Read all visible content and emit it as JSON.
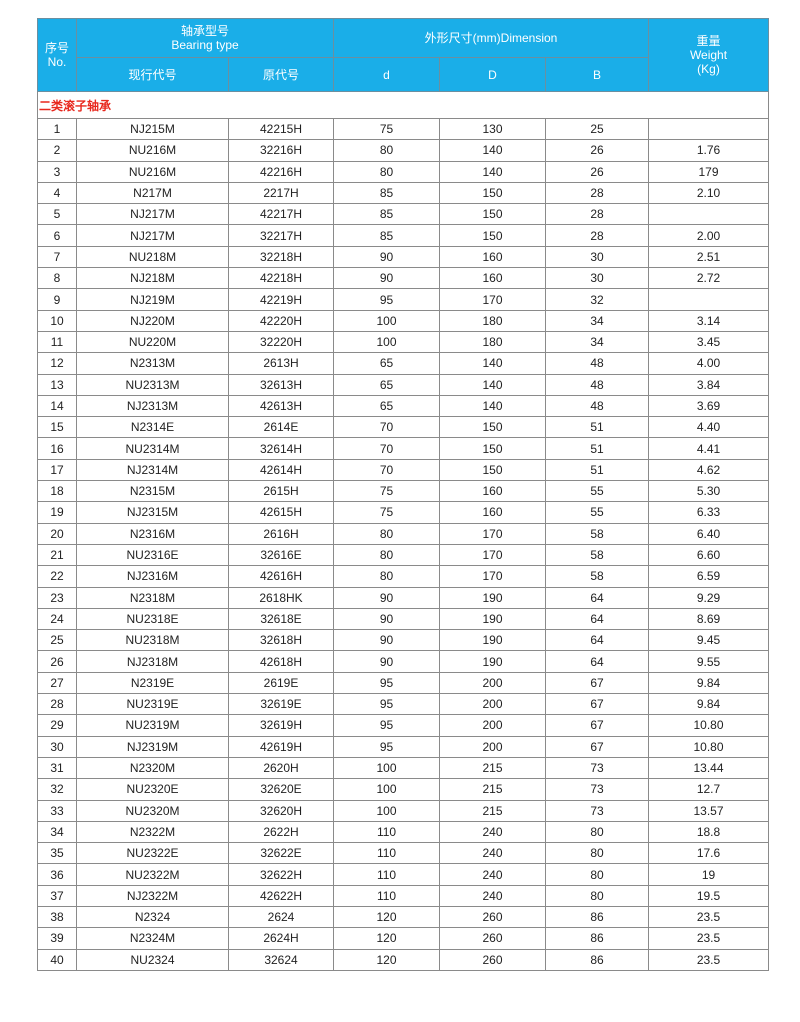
{
  "header": {
    "no_cn": "序号",
    "no_en": "No.",
    "type_cn": "轴承型号",
    "type_en": "Bearing type",
    "dim": "外形尺寸(mm)Dimension",
    "weight_cn": "重量",
    "weight_en": "Weight",
    "weight_unit": "(Kg)",
    "current": "现行代号",
    "original": "原代号",
    "d": "d",
    "D": "D",
    "B": "B"
  },
  "section": "二类滚子轴承",
  "colors": {
    "header_bg": "#1aaee8",
    "section_text": "#e8281e"
  },
  "rows": [
    [
      "1",
      "NJ215M",
      "42215H",
      "75",
      "130",
      "25",
      ""
    ],
    [
      "2",
      "NU216M",
      "32216H",
      "80",
      "140",
      "26",
      "1.76"
    ],
    [
      "3",
      "NU216M",
      "42216H",
      "80",
      "140",
      "26",
      "179"
    ],
    [
      "4",
      "N217M",
      "2217H",
      "85",
      "150",
      "28",
      "2.10"
    ],
    [
      "5",
      "NJ217M",
      "42217H",
      "85",
      "150",
      "28",
      ""
    ],
    [
      "6",
      "NJ217M",
      "32217H",
      "85",
      "150",
      "28",
      "2.00"
    ],
    [
      "7",
      "NU218M",
      "32218H",
      "90",
      "160",
      "30",
      "2.51"
    ],
    [
      "8",
      "NJ218M",
      "42218H",
      "90",
      "160",
      "30",
      "2.72"
    ],
    [
      "9",
      "NJ219M",
      "42219H",
      "95",
      "170",
      "32",
      ""
    ],
    [
      "10",
      "NJ220M",
      "42220H",
      "100",
      "180",
      "34",
      "3.14"
    ],
    [
      "11",
      "NU220M",
      "32220H",
      "100",
      "180",
      "34",
      "3.45"
    ],
    [
      "12",
      "N2313M",
      "2613H",
      "65",
      "140",
      "48",
      "4.00"
    ],
    [
      "13",
      "NU2313M",
      "32613H",
      "65",
      "140",
      "48",
      "3.84"
    ],
    [
      "14",
      "NJ2313M",
      "42613H",
      "65",
      "140",
      "48",
      "3.69"
    ],
    [
      "15",
      "N2314E",
      "2614E",
      "70",
      "150",
      "51",
      "4.40"
    ],
    [
      "16",
      "NU2314M",
      "32614H",
      "70",
      "150",
      "51",
      "4.41"
    ],
    [
      "17",
      "NJ2314M",
      "42614H",
      "70",
      "150",
      "51",
      "4.62"
    ],
    [
      "18",
      "N2315M",
      "2615H",
      "75",
      "160",
      "55",
      "5.30"
    ],
    [
      "19",
      "NJ2315M",
      "42615H",
      "75",
      "160",
      "55",
      "6.33"
    ],
    [
      "20",
      "N2316M",
      "2616H",
      "80",
      "170",
      "58",
      "6.40"
    ],
    [
      "21",
      "NU2316E",
      "32616E",
      "80",
      "170",
      "58",
      "6.60"
    ],
    [
      "22",
      "NJ2316M",
      "42616H",
      "80",
      "170",
      "58",
      "6.59"
    ],
    [
      "23",
      "N2318M",
      "2618HK",
      "90",
      "190",
      "64",
      "9.29"
    ],
    [
      "24",
      "NU2318E",
      "32618E",
      "90",
      "190",
      "64",
      "8.69"
    ],
    [
      "25",
      "NU2318M",
      "32618H",
      "90",
      "190",
      "64",
      "9.45"
    ],
    [
      "26",
      "NJ2318M",
      "42618H",
      "90",
      "190",
      "64",
      "9.55"
    ],
    [
      "27",
      "N2319E",
      "2619E",
      "95",
      "200",
      "67",
      "9.84"
    ],
    [
      "28",
      "NU2319E",
      "32619E",
      "95",
      "200",
      "67",
      "9.84"
    ],
    [
      "29",
      "NU2319M",
      "32619H",
      "95",
      "200",
      "67",
      "10.80"
    ],
    [
      "30",
      "NJ2319M",
      "42619H",
      "95",
      "200",
      "67",
      "10.80"
    ],
    [
      "31",
      "N2320M",
      "2620H",
      "100",
      "215",
      "73",
      "13.44"
    ],
    [
      "32",
      "NU2320E",
      "32620E",
      "100",
      "215",
      "73",
      "12.7"
    ],
    [
      "33",
      "NU2320M",
      "32620H",
      "100",
      "215",
      "73",
      "13.57"
    ],
    [
      "34",
      "N2322M",
      "2622H",
      "110",
      "240",
      "80",
      "18.8"
    ],
    [
      "35",
      "NU2322E",
      "32622E",
      "110",
      "240",
      "80",
      "17.6"
    ],
    [
      "36",
      "NU2322M",
      "32622H",
      "110",
      "240",
      "80",
      "19"
    ],
    [
      "37",
      "NJ2322M",
      "42622H",
      "110",
      "240",
      "80",
      "19.5"
    ],
    [
      "38",
      "N2324",
      "2624",
      "120",
      "260",
      "86",
      "23.5"
    ],
    [
      "39",
      "N2324M",
      "2624H",
      "120",
      "260",
      "86",
      "23.5"
    ],
    [
      "40",
      "NU2324",
      "32624",
      "120",
      "260",
      "86",
      "23.5"
    ]
  ]
}
